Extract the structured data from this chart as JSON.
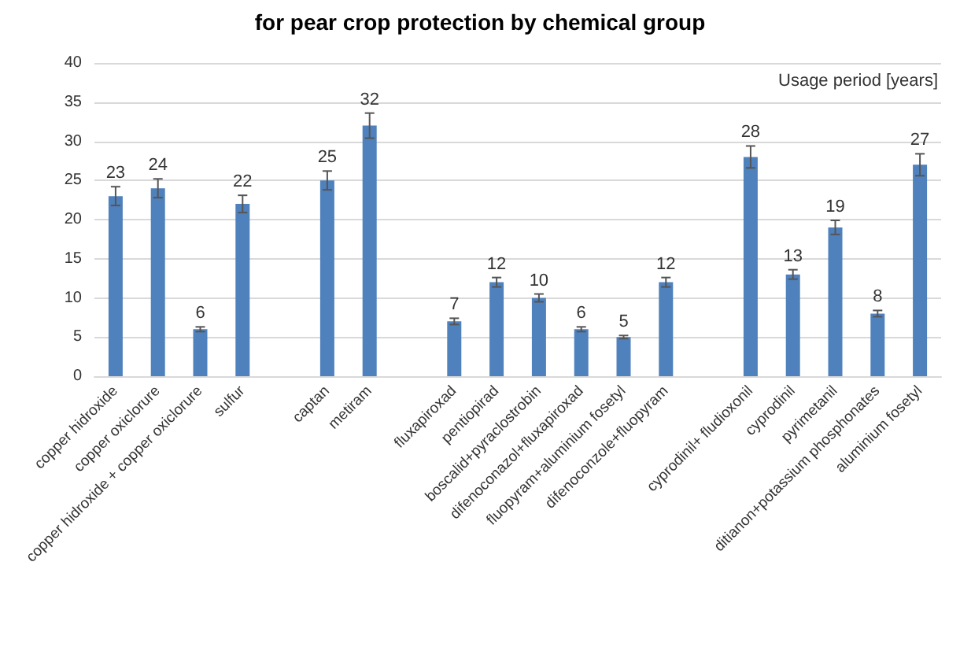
{
  "chart_data": {
    "type": "bar",
    "title": "for pear crop protection by chemical group",
    "ylabel": "Usage period [years]",
    "categories": [
      "copper hidroxide",
      "copper oxiclorure",
      "copper hidroxide + copper oxiclorure",
      "sulfur",
      null,
      "captan",
      "metiram",
      null,
      "fluxapiroxad",
      "pentiopirad",
      "boscalid+pyraclostrobin",
      "difenoconazol+fluxapiroxad",
      "fluopyram+aluminium fosetyl",
      "difenoconzole+fluopyram",
      null,
      "cyprodinil+ fludioxonil",
      "cyprodinil",
      "pyrimetanil",
      "ditianon+potassium phosphonates",
      "aluminium fosetyl"
    ],
    "values": [
      23,
      24,
      6,
      22,
      null,
      25,
      32,
      null,
      7,
      12,
      10,
      6,
      5,
      12,
      null,
      28,
      13,
      19,
      8,
      27
    ],
    "errors": [
      1.2,
      1.2,
      0.3,
      1.1,
      null,
      1.2,
      1.6,
      null,
      0.4,
      0.6,
      0.5,
      0.3,
      0.2,
      0.6,
      null,
      1.4,
      0.6,
      0.9,
      0.4,
      1.4
    ],
    "color": "#4f81bd",
    "data_labels": true,
    "ylim": [
      0,
      40
    ],
    "yticks": [
      0,
      5,
      10,
      15,
      20,
      25,
      30,
      35,
      40
    ],
    "grid": "y"
  }
}
